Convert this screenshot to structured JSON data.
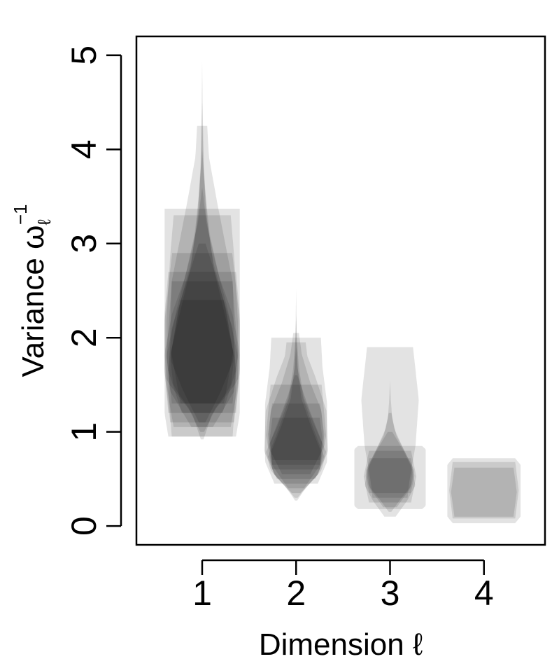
{
  "chart_data": {
    "type": "violin",
    "xlabel": "Dimension ℓ",
    "ylabel": "Variance ω",
    "ylabel_sub": "ℓ",
    "ylabel_sup": "−1",
    "categories": [
      "1",
      "2",
      "3",
      "4"
    ],
    "yticks": [
      "0",
      "1",
      "2",
      "3",
      "4",
      "5"
    ],
    "ylim": [
      -0.2,
      5.2
    ],
    "xlim": [
      0.3,
      4.65
    ],
    "grid": false,
    "fill_color": "#000000",
    "groups": [
      {
        "category": "1",
        "violins": [
          {
            "lo": 0.95,
            "hi": 3.37,
            "hw": 0.4,
            "prof": [
              [
                0,
                0.9
              ],
              [
                0.1,
                1
              ],
              [
                0.6,
                1
              ],
              [
                0.9,
                1
              ],
              [
                1,
                1
              ]
            ]
          },
          {
            "lo": 0.95,
            "hi": 4.25,
            "hw": 0.36,
            "prof": [
              [
                0,
                0.9
              ],
              [
                0.15,
                1
              ],
              [
                0.5,
                0.9
              ],
              [
                0.75,
                0.45
              ],
              [
                0.9,
                0.2
              ],
              [
                1,
                0.15
              ]
            ]
          },
          {
            "lo": 1.05,
            "hi": 3.3,
            "hw": 0.38,
            "prof": [
              [
                0,
                0.8
              ],
              [
                0.2,
                1
              ],
              [
                0.5,
                1
              ],
              [
                0.8,
                0.9
              ],
              [
                1,
                0.8
              ]
            ]
          },
          {
            "lo": 1.1,
            "hi": 2.9,
            "hw": 0.4,
            "prof": [
              [
                0,
                0.85
              ],
              [
                0.3,
                1
              ],
              [
                0.6,
                1
              ],
              [
                1,
                0.8
              ]
            ]
          },
          {
            "lo": 1.2,
            "hi": 2.7,
            "hw": 0.4,
            "prof": [
              [
                0,
                0.9
              ],
              [
                0.3,
                1
              ],
              [
                0.7,
                1
              ],
              [
                1,
                0.9
              ]
            ]
          },
          {
            "lo": 1.3,
            "hi": 2.6,
            "hw": 0.38,
            "prof": [
              [
                0,
                0.85
              ],
              [
                0.4,
                1
              ],
              [
                1,
                0.85
              ]
            ]
          },
          {
            "lo": 1.0,
            "hi": 4.0,
            "hw": 0.4,
            "prof": [
              [
                0,
                0.05
              ],
              [
                0.08,
                0.35
              ],
              [
                0.18,
                0.95
              ],
              [
                0.28,
                1
              ],
              [
                0.42,
                0.8
              ],
              [
                0.55,
                0.45
              ],
              [
                0.7,
                0.2
              ],
              [
                0.85,
                0.08
              ],
              [
                1,
                0
              ]
            ]
          },
          {
            "lo": 0.92,
            "hi": 4.93,
            "hw": 0.36,
            "prof": [
              [
                0,
                0.04
              ],
              [
                0.07,
                0.3
              ],
              [
                0.14,
                0.85
              ],
              [
                0.22,
                0.95
              ],
              [
                0.32,
                0.7
              ],
              [
                0.45,
                0.35
              ],
              [
                0.58,
                0.15
              ],
              [
                0.72,
                0.05
              ],
              [
                0.85,
                0.02
              ],
              [
                1,
                0
              ]
            ]
          },
          {
            "lo": 1.05,
            "hi": 3.6,
            "hw": 0.38,
            "prof": [
              [
                0,
                0.3
              ],
              [
                0.15,
                0.9
              ],
              [
                0.3,
                1
              ],
              [
                0.5,
                0.7
              ],
              [
                0.7,
                0.35
              ],
              [
                0.85,
                0.12
              ],
              [
                1,
                0
              ]
            ]
          },
          {
            "lo": 1.1,
            "hi": 4.5,
            "hw": 0.34,
            "prof": [
              [
                0,
                0.1
              ],
              [
                0.1,
                0.6
              ],
              [
                0.2,
                1
              ],
              [
                0.35,
                0.75
              ],
              [
                0.5,
                0.35
              ],
              [
                0.65,
                0.12
              ],
              [
                0.8,
                0.04
              ],
              [
                1,
                0
              ]
            ]
          },
          {
            "lo": 1.2,
            "hi": 3.0,
            "hw": 0.36,
            "prof": [
              [
                0,
                0.6
              ],
              [
                0.25,
                1
              ],
              [
                0.5,
                0.9
              ],
              [
                0.75,
                0.5
              ],
              [
                1,
                0.1
              ]
            ]
          },
          {
            "lo": 1.3,
            "hi": 2.4,
            "hw": 0.33,
            "prof": [
              [
                0,
                0.7
              ],
              [
                0.5,
                1
              ],
              [
                1,
                0.7
              ]
            ]
          }
        ]
      },
      {
        "category": "2",
        "violins": [
          {
            "lo": 0.45,
            "hi": 2.0,
            "hw": 0.33,
            "prof": [
              [
                0,
                0.7
              ],
              [
                0.15,
                1
              ],
              [
                0.55,
                1
              ],
              [
                0.8,
                0.85
              ],
              [
                1,
                0.8
              ]
            ]
          },
          {
            "lo": 0.5,
            "hi": 1.95,
            "hw": 0.34,
            "prof": [
              [
                0,
                0.6
              ],
              [
                0.2,
                1
              ],
              [
                0.5,
                0.95
              ],
              [
                0.75,
                0.6
              ],
              [
                0.9,
                0.35
              ],
              [
                1,
                0.3
              ]
            ]
          },
          {
            "lo": 0.55,
            "hi": 2.05,
            "hw": 0.3,
            "prof": [
              [
                0,
                0.5
              ],
              [
                0.2,
                1
              ],
              [
                0.45,
                0.9
              ],
              [
                0.65,
                0.5
              ],
              [
                0.85,
                0.2
              ],
              [
                1,
                0.1
              ]
            ]
          },
          {
            "lo": 0.6,
            "hi": 1.5,
            "hw": 0.32,
            "prof": [
              [
                0,
                0.8
              ],
              [
                0.4,
                1
              ],
              [
                1,
                0.85
              ]
            ]
          },
          {
            "lo": 0.65,
            "hi": 1.3,
            "hw": 0.3,
            "prof": [
              [
                0,
                0.85
              ],
              [
                0.5,
                1
              ],
              [
                1,
                0.85
              ]
            ]
          },
          {
            "lo": 0.7,
            "hi": 1.15,
            "hw": 0.28,
            "prof": [
              [
                0,
                0.9
              ],
              [
                0.5,
                1
              ],
              [
                1,
                0.9
              ]
            ]
          },
          {
            "lo": 0.3,
            "hi": 2.25,
            "hw": 0.32,
            "prof": [
              [
                0,
                0.05
              ],
              [
                0.06,
                0.35
              ],
              [
                0.15,
                0.85
              ],
              [
                0.25,
                1
              ],
              [
                0.4,
                0.6
              ],
              [
                0.55,
                0.25
              ],
              [
                0.7,
                0.1
              ],
              [
                0.85,
                0.03
              ],
              [
                1,
                0
              ]
            ]
          },
          {
            "lo": 0.27,
            "hi": 2.52,
            "hw": 0.29,
            "prof": [
              [
                0,
                0.04
              ],
              [
                0.05,
                0.3
              ],
              [
                0.13,
                0.85
              ],
              [
                0.22,
                0.95
              ],
              [
                0.35,
                0.55
              ],
              [
                0.48,
                0.2
              ],
              [
                0.62,
                0.06
              ],
              [
                0.8,
                0.02
              ],
              [
                1,
                0
              ]
            ]
          },
          {
            "lo": 0.35,
            "hi": 1.9,
            "hw": 0.3,
            "prof": [
              [
                0,
                0.15
              ],
              [
                0.12,
                0.75
              ],
              [
                0.25,
                1
              ],
              [
                0.45,
                0.6
              ],
              [
                0.65,
                0.25
              ],
              [
                0.85,
                0.06
              ],
              [
                1,
                0
              ]
            ]
          },
          {
            "lo": 0.4,
            "hi": 1.6,
            "hw": 0.28,
            "prof": [
              [
                0,
                0.3
              ],
              [
                0.2,
                0.9
              ],
              [
                0.4,
                1
              ],
              [
                0.7,
                0.5
              ],
              [
                1,
                0.05
              ]
            ]
          }
        ]
      },
      {
        "category": "3",
        "violins": [
          {
            "lo": 0.3,
            "hi": 1.9,
            "hw": 0.34,
            "prof": [
              [
                0,
                0.55
              ],
              [
                0.1,
                0.6
              ],
              [
                0.35,
                0.8
              ],
              [
                0.65,
                0.9
              ],
              [
                1,
                0.72
              ]
            ]
          },
          {
            "lo": 0.18,
            "hi": 0.85,
            "hw": 0.38,
            "prof": [
              [
                0,
                0.9
              ],
              [
                0.05,
                1
              ],
              [
                0.95,
                1
              ],
              [
                1,
                0.9
              ]
            ]
          },
          {
            "lo": 0.1,
            "hi": 1.2,
            "hw": 0.3,
            "prof": [
              [
                0,
                0.2
              ],
              [
                0.15,
                0.6
              ],
              [
                0.3,
                0.9
              ],
              [
                0.5,
                0.75
              ],
              [
                0.7,
                0.4
              ],
              [
                0.85,
                0.15
              ],
              [
                1,
                0.05
              ]
            ]
          },
          {
            "lo": 0.25,
            "hi": 0.8,
            "hw": 0.28,
            "prof": [
              [
                0,
                0.8
              ],
              [
                0.5,
                1
              ],
              [
                1,
                0.8
              ]
            ]
          },
          {
            "lo": 0.35,
            "hi": 0.72,
            "hw": 0.26,
            "prof": [
              [
                0,
                0.85
              ],
              [
                0.5,
                1
              ],
              [
                1,
                0.85
              ]
            ]
          },
          {
            "lo": 0.15,
            "hi": 1.55,
            "hw": 0.27,
            "prof": [
              [
                0,
                0.05
              ],
              [
                0.08,
                0.35
              ],
              [
                0.2,
                0.85
              ],
              [
                0.32,
                0.95
              ],
              [
                0.45,
                0.6
              ],
              [
                0.58,
                0.25
              ],
              [
                0.72,
                0.08
              ],
              [
                0.86,
                0.03
              ],
              [
                1,
                0
              ]
            ]
          },
          {
            "lo": 0.2,
            "hi": 1.0,
            "hw": 0.24,
            "prof": [
              [
                0,
                0.3
              ],
              [
                0.25,
                0.9
              ],
              [
                0.5,
                1
              ],
              [
                0.75,
                0.6
              ],
              [
                1,
                0.1
              ]
            ]
          }
        ]
      },
      {
        "category": "4",
        "violins": [
          {
            "lo": 0.03,
            "hi": 0.72,
            "hw": 0.39,
            "prof": [
              [
                0,
                0.85
              ],
              [
                0.1,
                1
              ],
              [
                0.9,
                1
              ],
              [
                1,
                0.85
              ]
            ]
          },
          {
            "lo": 0.08,
            "hi": 0.68,
            "hw": 0.37,
            "prof": [
              [
                0,
                0.9
              ],
              [
                0.5,
                1
              ],
              [
                1,
                0.9
              ]
            ]
          },
          {
            "lo": 0.1,
            "hi": 0.62,
            "hw": 0.35,
            "prof": [
              [
                0,
                0.9
              ],
              [
                0.5,
                1
              ],
              [
                1,
                0.9
              ]
            ]
          }
        ]
      }
    ]
  }
}
